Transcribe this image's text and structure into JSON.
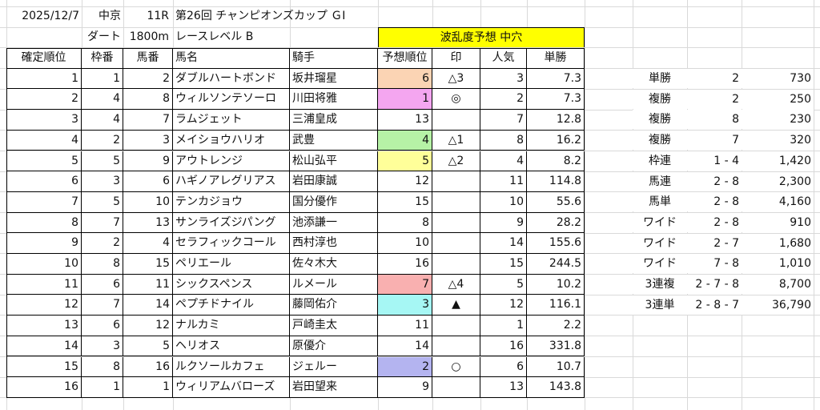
{
  "header": {
    "date": "2025/12/7",
    "venue": "中京",
    "race_no": "11R",
    "race_name": "第26回 チャンピオンズカップ ＧⅠ",
    "surface": "ダート",
    "distance": "1800m",
    "level": "レースレベル B",
    "banner": "波乱度予想 中穴"
  },
  "columns": [
    "確定順位",
    "枠番",
    "馬番",
    "馬名",
    "騎手",
    "予想順位",
    "印",
    "人気",
    "単勝"
  ],
  "rows": [
    {
      "rank": "1",
      "waku": "1",
      "uma": "2",
      "name": "ダブルハートボンド",
      "jockey": "坂井瑠星",
      "pred": "6",
      "mark": "△3",
      "pop": "3",
      "odds": "7.3",
      "color": "#fbd4b4"
    },
    {
      "rank": "2",
      "waku": "4",
      "uma": "8",
      "name": "ウィルソンテソーロ",
      "jockey": "川田将雅",
      "pred": "1",
      "mark": "◎",
      "pop": "2",
      "odds": "7.3",
      "color": "#f4a6f0"
    },
    {
      "rank": "3",
      "waku": "4",
      "uma": "7",
      "name": "ラムジェット",
      "jockey": "三浦皇成",
      "pred": "13",
      "mark": "",
      "pop": "7",
      "odds": "12.8",
      "color": ""
    },
    {
      "rank": "4",
      "waku": "2",
      "uma": "3",
      "name": "メイショウハリオ",
      "jockey": "武豊",
      "pred": "4",
      "mark": "△1",
      "pop": "8",
      "odds": "16.2",
      "color": "#b6f2a6"
    },
    {
      "rank": "5",
      "waku": "5",
      "uma": "9",
      "name": "アウトレンジ",
      "jockey": "松山弘平",
      "pred": "5",
      "mark": "△2",
      "pop": "4",
      "odds": "8.2",
      "color": "#ffff99"
    },
    {
      "rank": "6",
      "waku": "3",
      "uma": "6",
      "name": "ハギノアレグリアス",
      "jockey": "岩田康誠",
      "pred": "12",
      "mark": "",
      "pop": "11",
      "odds": "114.8",
      "color": ""
    },
    {
      "rank": "7",
      "waku": "5",
      "uma": "10",
      "name": "テンカジョウ",
      "jockey": "国分優作",
      "pred": "15",
      "mark": "",
      "pop": "10",
      "odds": "55.6",
      "color": ""
    },
    {
      "rank": "8",
      "waku": "7",
      "uma": "13",
      "name": "サンライズジパング",
      "jockey": "池添謙一",
      "pred": "8",
      "mark": "",
      "pop": "9",
      "odds": "28.2",
      "color": ""
    },
    {
      "rank": "9",
      "waku": "2",
      "uma": "4",
      "name": "セラフィックコール",
      "jockey": "西村淳也",
      "pred": "10",
      "mark": "",
      "pop": "14",
      "odds": "155.6",
      "color": ""
    },
    {
      "rank": "10",
      "waku": "8",
      "uma": "15",
      "name": "ペリエール",
      "jockey": "佐々木大",
      "pred": "16",
      "mark": "",
      "pop": "15",
      "odds": "244.5",
      "color": ""
    },
    {
      "rank": "11",
      "waku": "6",
      "uma": "11",
      "name": "シックスペンス",
      "jockey": "ルメール",
      "pred": "7",
      "mark": "△4",
      "pop": "5",
      "odds": "10.2",
      "color": "#f9b0b0"
    },
    {
      "rank": "12",
      "waku": "7",
      "uma": "14",
      "name": "ペプチドナイル",
      "jockey": "藤岡佑介",
      "pred": "3",
      "mark": "▲",
      "pop": "12",
      "odds": "116.1",
      "color": "#a6f7f4"
    },
    {
      "rank": "13",
      "waku": "6",
      "uma": "12",
      "name": "ナルカミ",
      "jockey": "戸崎圭太",
      "pred": "11",
      "mark": "",
      "pop": "1",
      "odds": "2.2",
      "color": ""
    },
    {
      "rank": "14",
      "waku": "3",
      "uma": "5",
      "name": "ヘリオス",
      "jockey": "原優介",
      "pred": "14",
      "mark": "",
      "pop": "16",
      "odds": "331.8",
      "color": ""
    },
    {
      "rank": "15",
      "waku": "8",
      "uma": "16",
      "name": "ルクソールカフェ",
      "jockey": "ジェルー",
      "pred": "2",
      "mark": "○",
      "pop": "6",
      "odds": "10.7",
      "color": "#b4b4f0"
    },
    {
      "rank": "16",
      "waku": "1",
      "uma": "1",
      "name": "ウィリアムバローズ",
      "jockey": "岩田望来",
      "pred": "9",
      "mark": "",
      "pop": "13",
      "odds": "143.8",
      "color": ""
    }
  ],
  "payouts": [
    {
      "type": "単勝",
      "combo": "2",
      "amount": "730"
    },
    {
      "type": "複勝",
      "combo": "2",
      "amount": "250"
    },
    {
      "type": "複勝",
      "combo": "8",
      "amount": "230"
    },
    {
      "type": "複勝",
      "combo": "7",
      "amount": "320"
    },
    {
      "type": "枠連",
      "combo": "1 - 4",
      "amount": "1,420"
    },
    {
      "type": "馬連",
      "combo": "2 - 8",
      "amount": "2,300"
    },
    {
      "type": "馬単",
      "combo": "2 - 8",
      "amount": "4,160"
    },
    {
      "type": "ワイド",
      "combo": "2 - 8",
      "amount": "910"
    },
    {
      "type": "ワイド",
      "combo": "2 - 7",
      "amount": "1,680"
    },
    {
      "type": "ワイド",
      "combo": "7 - 8",
      "amount": "1,010"
    },
    {
      "type": "3連複",
      "combo": "2 - 7 - 8",
      "amount": "8,700"
    },
    {
      "type": "3連単",
      "combo": "2 - 8 - 7",
      "amount": "36,790"
    }
  ]
}
